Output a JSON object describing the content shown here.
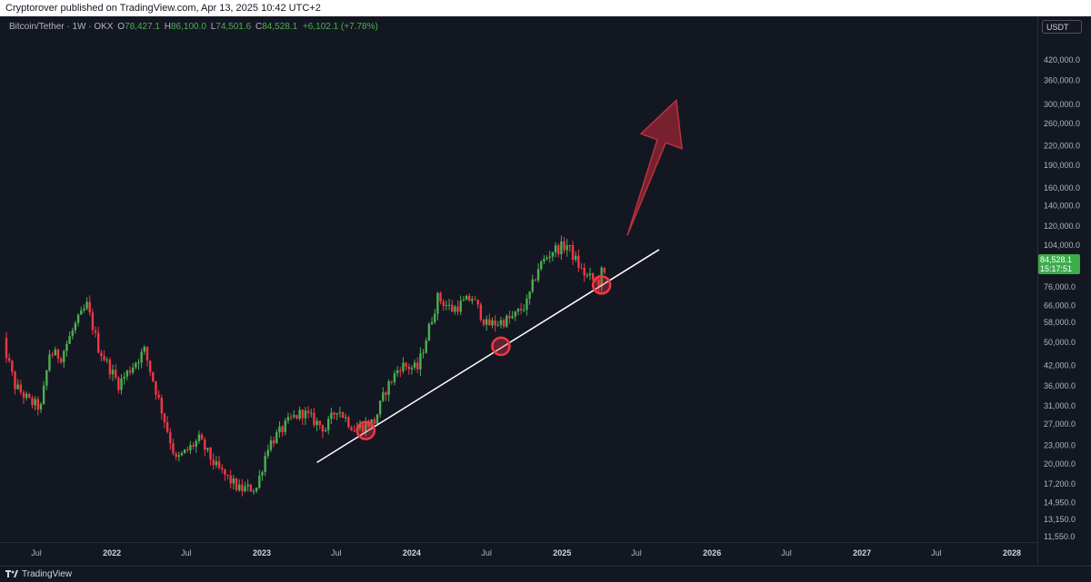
{
  "header": {
    "publish_line": "Cryptorover published on TradingView.com, Apr 13, 2025 10:42 UTC+2"
  },
  "legend": {
    "symbol": "Bitcoin/Tether · 1W · OKX",
    "open_label": "O",
    "open": "78,427.1",
    "high_label": "H",
    "high": "86,100.0",
    "low_label": "L",
    "low": "74,501.6",
    "close_label": "C",
    "close": "84,528.1",
    "change": "+6,102.1 (+7.78%)"
  },
  "currency": "USDT",
  "last_price": {
    "value": "84,528.1",
    "countdown": "15:17:51"
  },
  "footer": {
    "brand": "TradingView"
  },
  "colors": {
    "background": "#131722",
    "up": "#26a69a",
    "up_chart": "#4caf50",
    "down": "#f23645",
    "trendline": "#ffffff",
    "arrow": "#8b2330"
  },
  "chart_data": {
    "type": "candlestick",
    "symbol": "BTC/USDT",
    "interval": "1W",
    "y_scale": "log",
    "ylim": [
      11000,
      460000
    ],
    "y_ticks": [
      "420,000.0",
      "360,000.0",
      "300,000.0",
      "260,000.0",
      "220,000.0",
      "190,000.0",
      "160,000.0",
      "140,000.0",
      "120,000.0",
      "104,000.0",
      "88,000.0",
      "76,000.0",
      "66,000.0",
      "58,000.0",
      "50,000.0",
      "42,000.0",
      "36,000.0",
      "31,000.0",
      "27,000.0",
      "23,000.0",
      "20,000.0",
      "17,200.0",
      "14,950.0",
      "13,150.0",
      "11,550.0"
    ],
    "x_ticks": [
      {
        "label": "Jul",
        "date": "2021-07-01"
      },
      {
        "label": "2022",
        "date": "2022-01-01",
        "year": true
      },
      {
        "label": "Jul",
        "date": "2022-07-01"
      },
      {
        "label": "2023",
        "date": "2023-01-01",
        "year": true
      },
      {
        "label": "Jul",
        "date": "2023-07-01"
      },
      {
        "label": "2024",
        "date": "2024-01-01",
        "year": true
      },
      {
        "label": "Jul",
        "date": "2024-07-01"
      },
      {
        "label": "2025",
        "date": "2025-01-01",
        "year": true
      },
      {
        "label": "Jul",
        "date": "2025-07-01"
      },
      {
        "label": "2026",
        "date": "2026-01-01",
        "year": true
      },
      {
        "label": "Jul",
        "date": "2026-07-01"
      },
      {
        "label": "2027",
        "date": "2027-01-01",
        "year": true
      },
      {
        "label": "Jul",
        "date": "2027-07-01"
      },
      {
        "label": "2028",
        "date": "2028-01-01",
        "year": true
      }
    ],
    "price_path": [
      [
        "2021-04-05",
        58000
      ],
      [
        "2021-05-17",
        36000
      ],
      [
        "2021-06-21",
        32000
      ],
      [
        "2021-07-19",
        30500
      ],
      [
        "2021-08-09",
        46000
      ],
      [
        "2021-09-06",
        45000
      ],
      [
        "2021-10-11",
        57000
      ],
      [
        "2021-11-08",
        66000
      ],
      [
        "2021-12-06",
        48000
      ],
      [
        "2022-01-24",
        36500
      ],
      [
        "2022-03-28",
        47000
      ],
      [
        "2022-05-09",
        30000
      ],
      [
        "2022-06-13",
        20500
      ],
      [
        "2022-08-08",
        24000
      ],
      [
        "2022-09-19",
        19500
      ],
      [
        "2022-11-14",
        16500
      ],
      [
        "2022-12-26",
        16700
      ],
      [
        "2023-01-23",
        23000
      ],
      [
        "2023-03-20",
        28000
      ],
      [
        "2023-04-17",
        29500
      ],
      [
        "2023-06-12",
        26000
      ],
      [
        "2023-07-10",
        30500
      ],
      [
        "2023-08-21",
        26000
      ],
      [
        "2023-10-09",
        27500
      ],
      [
        "2023-11-06",
        35000
      ],
      [
        "2023-12-11",
        42000
      ],
      [
        "2024-01-22",
        41000
      ],
      [
        "2024-03-11",
        70000
      ],
      [
        "2024-04-15",
        64000
      ],
      [
        "2024-06-03",
        70000
      ],
      [
        "2024-07-08",
        57000
      ],
      [
        "2024-08-05",
        58000
      ],
      [
        "2024-09-09",
        60000
      ],
      [
        "2024-10-14",
        67000
      ],
      [
        "2024-11-11",
        88000
      ],
      [
        "2024-12-16",
        100000
      ],
      [
        "2025-01-20",
        104000
      ],
      [
        "2025-02-24",
        86000
      ],
      [
        "2025-03-10",
        82000
      ],
      [
        "2025-04-07",
        78500
      ],
      [
        "2025-04-14",
        84528
      ]
    ],
    "trendline": {
      "start": [
        "2023-05-15",
        20200
      ],
      "end": [
        "2025-08-25",
        100500
      ]
    },
    "touch_points": [
      {
        "date": "2023-09-11",
        "price": 25700
      },
      {
        "date": "2024-08-05",
        "price": 48500
      },
      {
        "date": "2025-04-07",
        "price": 77000
      }
    ],
    "projection_arrow": {
      "start": [
        "2025-06-09",
        112000
      ],
      "end": [
        "2025-10-06",
        310000
      ]
    },
    "last_price": 84528.1
  }
}
